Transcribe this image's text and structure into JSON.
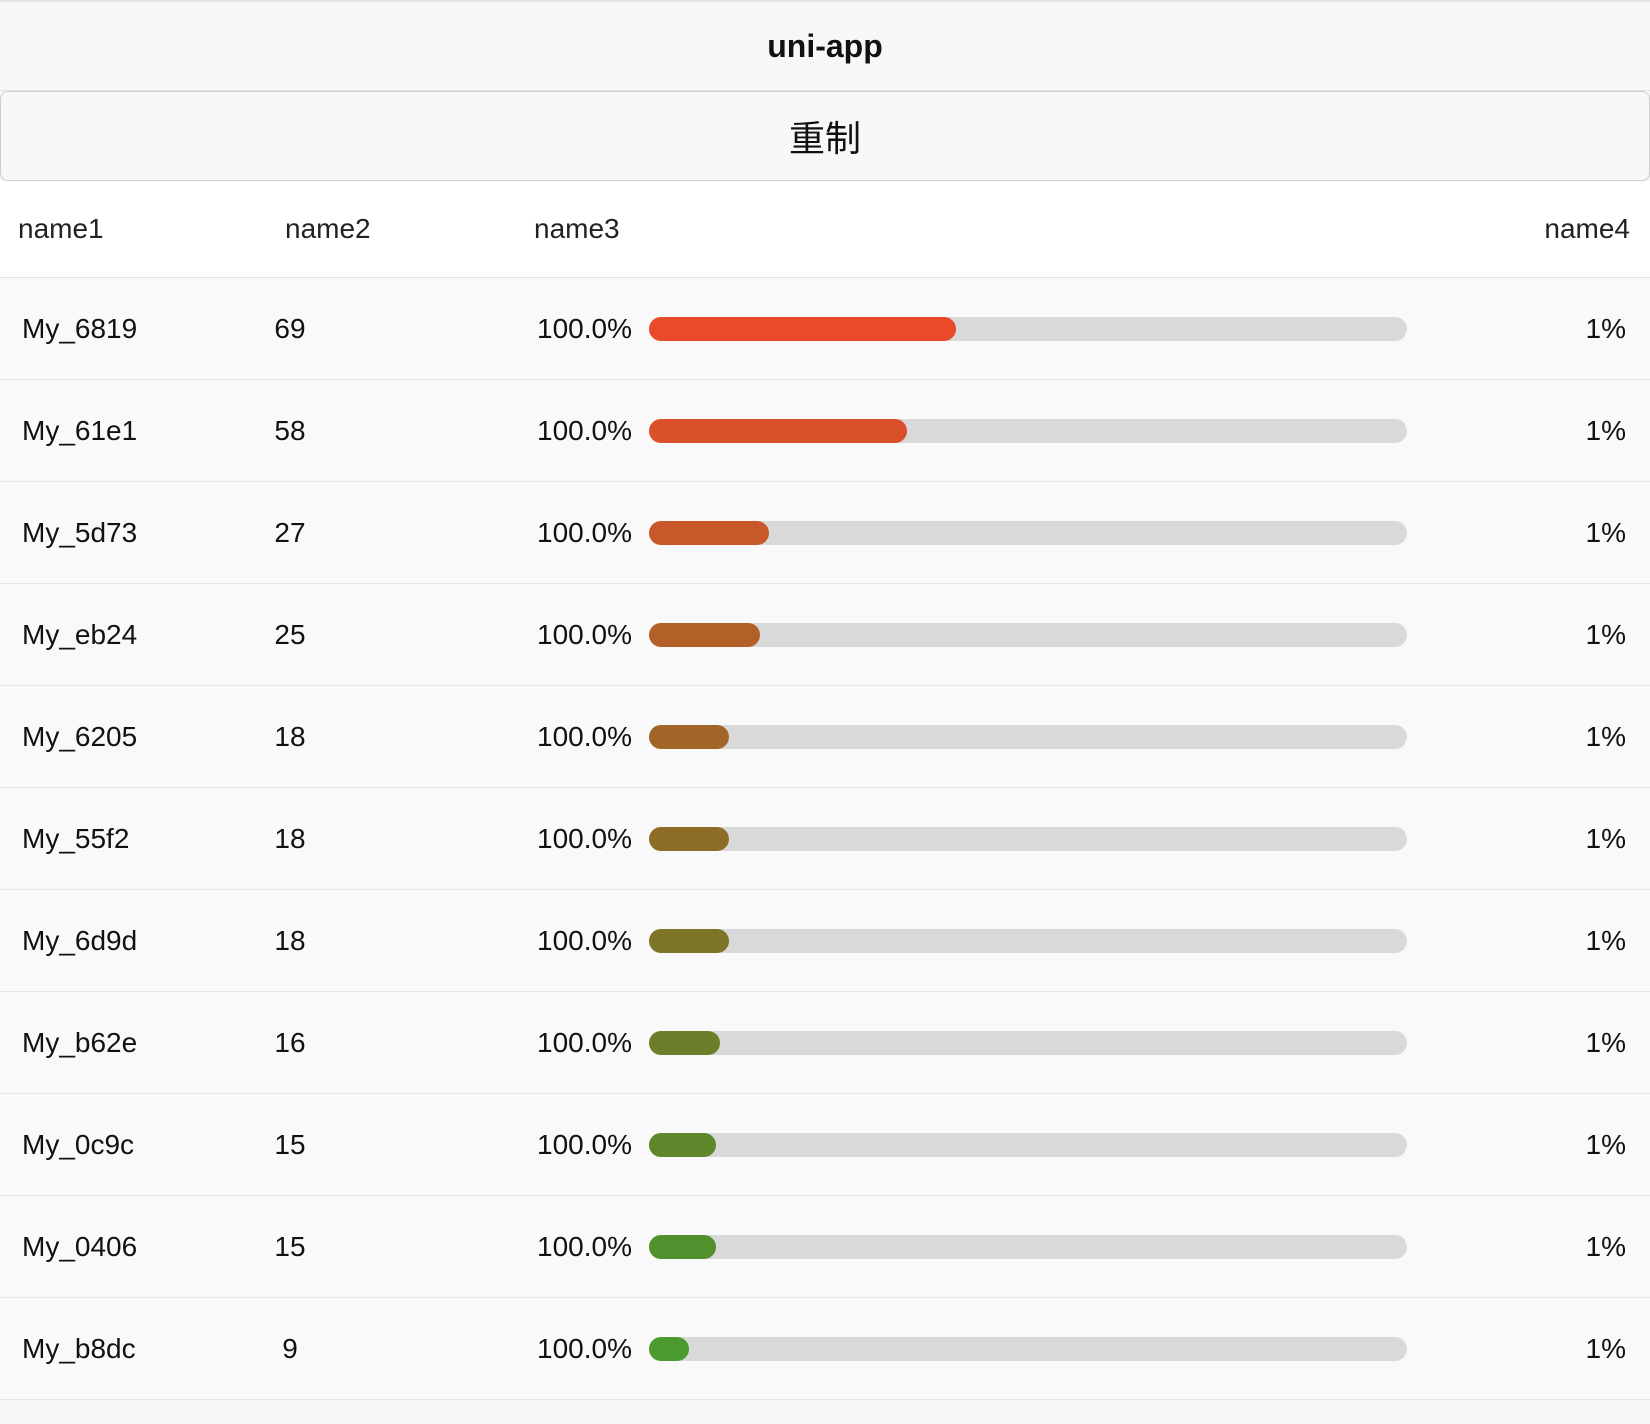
{
  "navbar": {
    "title": "uni-app"
  },
  "reset_button": {
    "label": "重制"
  },
  "table": {
    "headers": [
      "name1",
      "name2",
      "name3",
      "name4"
    ],
    "rows": [
      {
        "name": "My_6819",
        "count": "69",
        "percent_label": "100.0%",
        "bar_fraction": 0.405,
        "bar_color": "#e84a2a",
        "rate": "1%"
      },
      {
        "name": "My_61e1",
        "count": "58",
        "percent_label": "100.0%",
        "bar_fraction": 0.34,
        "bar_color": "#d9502a",
        "rate": "1%"
      },
      {
        "name": "My_5d73",
        "count": "27",
        "percent_label": "100.0%",
        "bar_fraction": 0.158,
        "bar_color": "#c8582a",
        "rate": "1%"
      },
      {
        "name": "My_eb24",
        "count": "25",
        "percent_label": "100.0%",
        "bar_fraction": 0.146,
        "bar_color": "#b35f28",
        "rate": "1%"
      },
      {
        "name": "My_6205",
        "count": "18",
        "percent_label": "100.0%",
        "bar_fraction": 0.105,
        "bar_color": "#a16527",
        "rate": "1%"
      },
      {
        "name": "My_55f2",
        "count": "18",
        "percent_label": "100.0%",
        "bar_fraction": 0.105,
        "bar_color": "#8d6c28",
        "rate": "1%"
      },
      {
        "name": "My_6d9d",
        "count": "18",
        "percent_label": "100.0%",
        "bar_fraction": 0.105,
        "bar_color": "#7c7528",
        "rate": "1%"
      },
      {
        "name": "My_b62e",
        "count": "16",
        "percent_label": "100.0%",
        "bar_fraction": 0.094,
        "bar_color": "#6d7e2a",
        "rate": "1%"
      },
      {
        "name": "My_0c9c",
        "count": "15",
        "percent_label": "100.0%",
        "bar_fraction": 0.088,
        "bar_color": "#5e872b",
        "rate": "1%"
      },
      {
        "name": "My_0406",
        "count": "15",
        "percent_label": "100.0%",
        "bar_fraction": 0.088,
        "bar_color": "#51902c",
        "rate": "1%"
      },
      {
        "name": "My_b8dc",
        "count": "9",
        "percent_label": "100.0%",
        "bar_fraction": 0.053,
        "bar_color": "#4b9a2e",
        "rate": "1%"
      }
    ]
  }
}
